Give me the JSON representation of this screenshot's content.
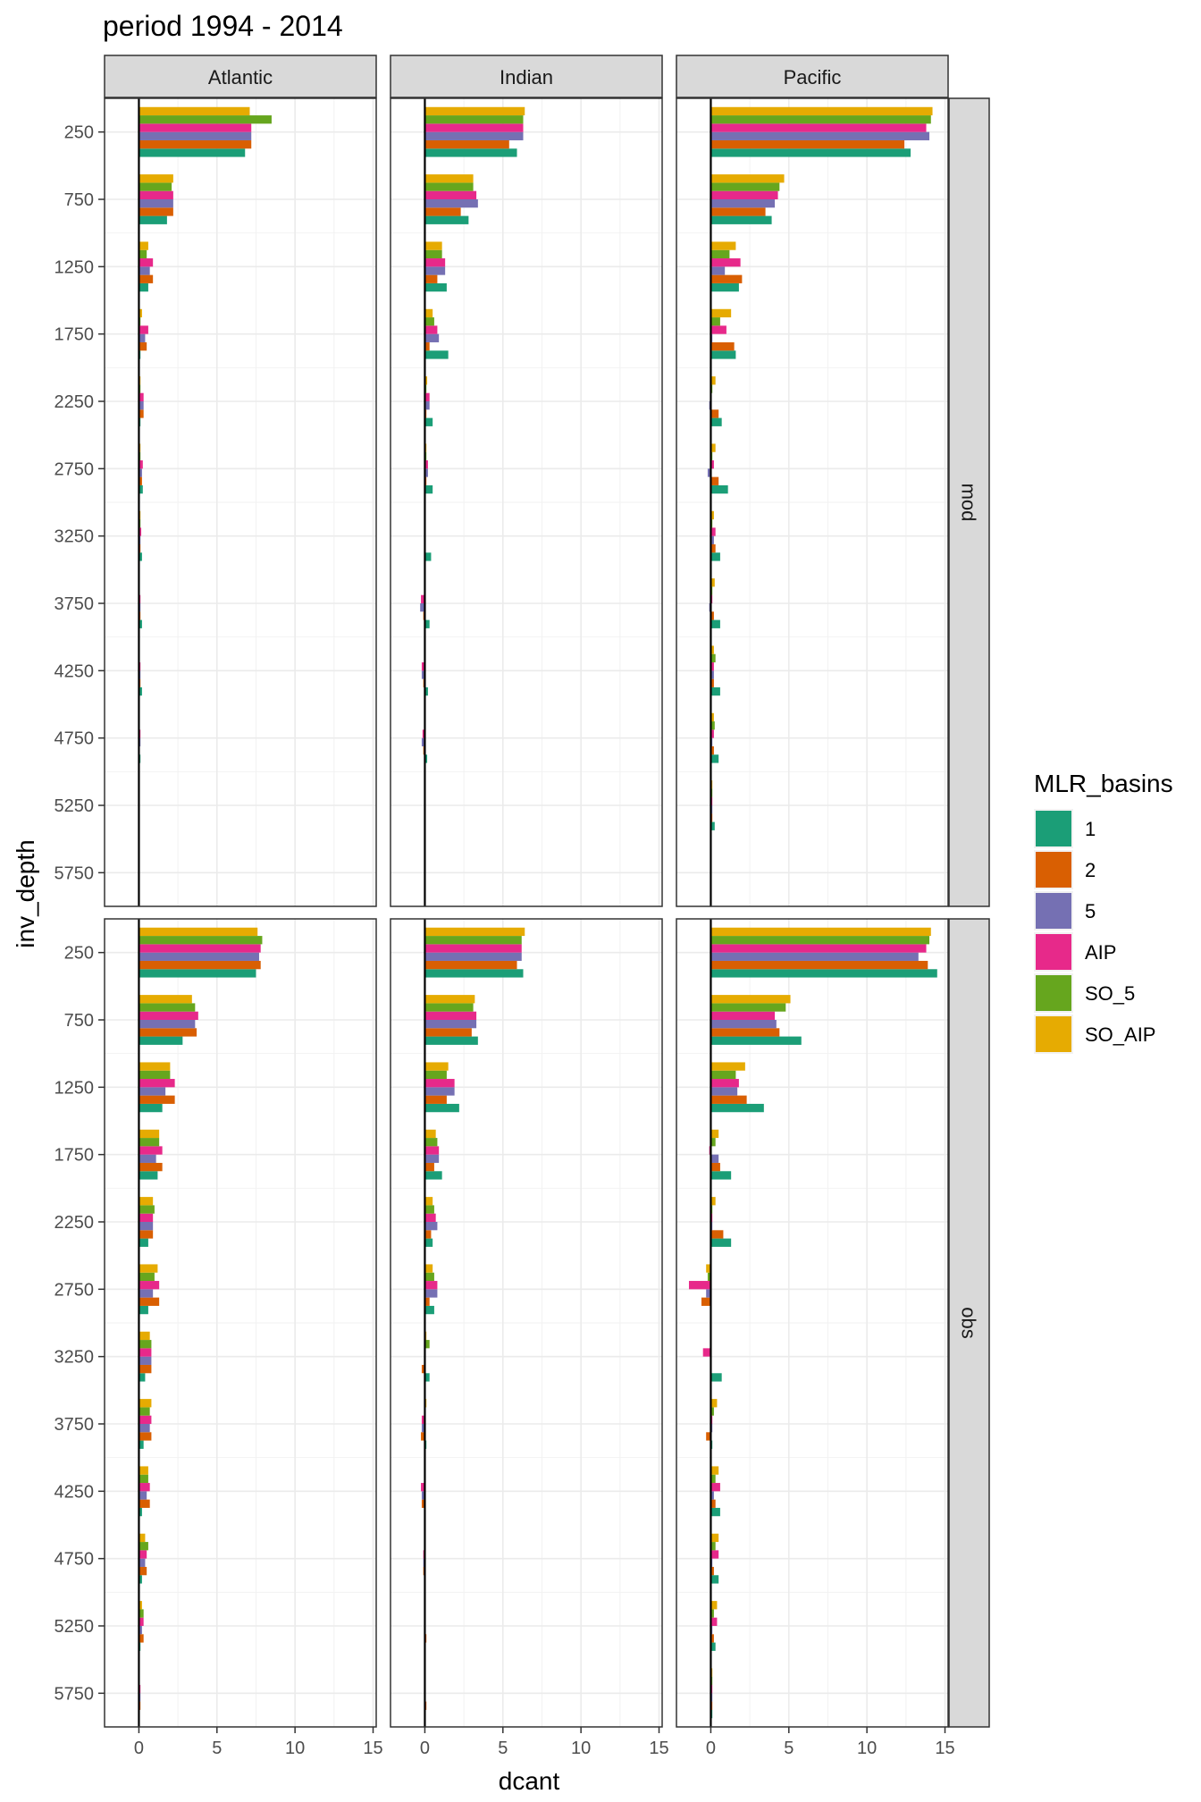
{
  "chart_data": {
    "type": "bar",
    "orientation": "horizontal",
    "title": "period 1994 - 2014",
    "xlabel": "dcant",
    "ylabel": "inv_depth",
    "xlim": [
      -2.2,
      15.2
    ],
    "xticks": [
      0,
      5,
      10,
      15
    ],
    "depths": [
      250,
      750,
      1250,
      1750,
      2250,
      2750,
      3250,
      3750,
      4250,
      4750,
      5250,
      5750
    ],
    "facet_cols": [
      "Atlantic",
      "Indian",
      "Pacific"
    ],
    "facet_rows": [
      "mod",
      "obs"
    ],
    "grid": true,
    "legend": {
      "title": "MLR_basins",
      "position": "right",
      "entries": [
        "1",
        "2",
        "5",
        "AIP",
        "SO_5",
        "SO_AIP"
      ]
    },
    "colors": {
      "1": "#1b9e77",
      "2": "#d95f02",
      "5": "#7570b3",
      "AIP": "#e7298a",
      "SO_5": "#66a61e",
      "SO_AIP": "#e6ab02"
    },
    "panels": [
      {
        "row": "mod",
        "col": "Atlantic",
        "series": [
          {
            "name": "1",
            "values": [
              6.8,
              1.8,
              0.6,
              0.1,
              0.1,
              0.25,
              0.2,
              0.2,
              0.2,
              0.1,
              0.05,
              0.0
            ]
          },
          {
            "name": "2",
            "values": [
              7.2,
              2.2,
              0.9,
              0.5,
              0.3,
              0.2,
              0.1,
              0.1,
              0.1,
              0.05,
              0.0,
              0.0
            ]
          },
          {
            "name": "5",
            "values": [
              7.2,
              2.2,
              0.7,
              0.4,
              0.3,
              0.2,
              0.1,
              0.1,
              0.1,
              0.1,
              0.0,
              0.0
            ]
          },
          {
            "name": "AIP",
            "values": [
              7.2,
              2.2,
              0.9,
              0.6,
              0.3,
              0.25,
              0.15,
              0.1,
              0.1,
              0.1,
              0.0,
              0.0
            ]
          },
          {
            "name": "SO_5",
            "values": [
              8.5,
              2.1,
              0.5,
              0.1,
              0.1,
              0.1,
              0.1,
              0.05,
              0.05,
              0.05,
              0.0,
              0.0
            ]
          },
          {
            "name": "SO_AIP",
            "values": [
              7.1,
              2.2,
              0.6,
              0.2,
              0.1,
              0.1,
              0.1,
              0.05,
              0.05,
              0.05,
              0.0,
              0.0
            ]
          }
        ]
      },
      {
        "row": "mod",
        "col": "Indian",
        "series": [
          {
            "name": "1",
            "values": [
              5.9,
              2.8,
              1.4,
              1.5,
              0.5,
              0.5,
              0.4,
              0.3,
              0.2,
              0.15,
              0.05,
              0.0
            ]
          },
          {
            "name": "2",
            "values": [
              5.4,
              2.3,
              0.8,
              0.3,
              0.1,
              0.1,
              0.05,
              -0.1,
              -0.1,
              -0.1,
              0.0,
              0.0
            ]
          },
          {
            "name": "5",
            "values": [
              6.3,
              3.4,
              1.3,
              0.9,
              0.3,
              0.2,
              0.05,
              -0.3,
              -0.2,
              -0.2,
              0.0,
              0.0
            ]
          },
          {
            "name": "AIP",
            "values": [
              6.3,
              3.3,
              1.3,
              0.8,
              0.3,
              0.2,
              0.05,
              -0.25,
              -0.2,
              -0.15,
              0.0,
              0.0
            ]
          },
          {
            "name": "SO_5",
            "values": [
              6.3,
              3.1,
              1.1,
              0.6,
              0.1,
              0.1,
              0.05,
              0.05,
              0.0,
              0.0,
              0.0,
              0.0
            ]
          },
          {
            "name": "SO_AIP",
            "values": [
              6.4,
              3.1,
              1.1,
              0.5,
              0.15,
              0.1,
              0.05,
              0.05,
              0.0,
              0.0,
              0.0,
              0.0
            ]
          }
        ]
      },
      {
        "row": "mod",
        "col": "Pacific",
        "series": [
          {
            "name": "1",
            "values": [
              12.8,
              3.9,
              1.8,
              1.6,
              0.7,
              1.1,
              0.6,
              0.6,
              0.6,
              0.5,
              0.25,
              0.0
            ]
          },
          {
            "name": "2",
            "values": [
              12.4,
              3.5,
              2.0,
              1.5,
              0.5,
              0.5,
              0.3,
              0.2,
              0.2,
              0.2,
              0.1,
              0.0
            ]
          },
          {
            "name": "5",
            "values": [
              14.0,
              4.1,
              0.9,
              0.1,
              -0.1,
              -0.2,
              0.2,
              -0.1,
              0.2,
              0.1,
              0.1,
              0.0
            ]
          },
          {
            "name": "AIP",
            "values": [
              13.8,
              4.3,
              1.9,
              1.0,
              0.05,
              0.2,
              0.3,
              0.1,
              0.2,
              0.2,
              0.1,
              0.0
            ]
          },
          {
            "name": "SO_5",
            "values": [
              14.1,
              4.4,
              1.2,
              0.6,
              0.1,
              0.1,
              0.1,
              0.1,
              0.3,
              0.25,
              0.1,
              0.0
            ]
          },
          {
            "name": "SO_AIP",
            "values": [
              14.2,
              4.7,
              1.6,
              1.3,
              0.3,
              0.3,
              0.2,
              0.25,
              0.2,
              0.2,
              0.1,
              0.0
            ]
          }
        ]
      },
      {
        "row": "obs",
        "col": "Atlantic",
        "series": [
          {
            "name": "1",
            "values": [
              7.5,
              2.8,
              1.5,
              1.2,
              0.6,
              0.6,
              0.4,
              0.3,
              0.2,
              0.2,
              0.1,
              0.05
            ]
          },
          {
            "name": "2",
            "values": [
              7.8,
              3.7,
              2.3,
              1.5,
              0.9,
              1.3,
              0.8,
              0.8,
              0.7,
              0.5,
              0.3,
              0.1
            ]
          },
          {
            "name": "5",
            "values": [
              7.7,
              3.6,
              1.7,
              1.1,
              0.9,
              0.9,
              0.8,
              0.7,
              0.5,
              0.4,
              0.2,
              0.1
            ]
          },
          {
            "name": "AIP",
            "values": [
              7.8,
              3.8,
              2.3,
              1.5,
              0.9,
              1.3,
              0.8,
              0.8,
              0.7,
              0.5,
              0.3,
              0.1
            ]
          },
          {
            "name": "SO_5",
            "values": [
              7.9,
              3.6,
              2.0,
              1.3,
              1.0,
              1.0,
              0.8,
              0.7,
              0.6,
              0.6,
              0.3,
              0.05
            ]
          },
          {
            "name": "SO_AIP",
            "values": [
              7.6,
              3.4,
              2.0,
              1.3,
              0.9,
              1.2,
              0.7,
              0.8,
              0.6,
              0.4,
              0.2,
              0.05
            ]
          }
        ]
      },
      {
        "row": "obs",
        "col": "Indian",
        "series": [
          {
            "name": "1",
            "values": [
              6.3,
              3.4,
              2.2,
              1.1,
              0.5,
              0.6,
              0.3,
              0.1,
              0.05,
              0.0,
              0.0,
              0.0
            ]
          },
          {
            "name": "2",
            "values": [
              5.9,
              3.0,
              1.4,
              0.6,
              0.4,
              0.3,
              -0.2,
              -0.25,
              -0.2,
              -0.1,
              0.1,
              0.1
            ]
          },
          {
            "name": "5",
            "values": [
              6.2,
              3.3,
              1.9,
              0.9,
              0.8,
              0.8,
              0.05,
              -0.2,
              -0.2,
              -0.1,
              0.0,
              0.0
            ]
          },
          {
            "name": "AIP",
            "values": [
              6.2,
              3.3,
              1.9,
              0.9,
              0.7,
              0.8,
              0.05,
              -0.2,
              -0.25,
              -0.1,
              0.0,
              0.0
            ]
          },
          {
            "name": "SO_5",
            "values": [
              6.2,
              3.1,
              1.4,
              0.8,
              0.6,
              0.6,
              0.3,
              0.05,
              0.05,
              0.0,
              0.0,
              0.0
            ]
          },
          {
            "name": "SO_AIP",
            "values": [
              6.4,
              3.2,
              1.5,
              0.7,
              0.5,
              0.5,
              0.1,
              0.1,
              0.05,
              0.0,
              0.0,
              0.0
            ]
          }
        ]
      },
      {
        "row": "obs",
        "col": "Pacific",
        "series": [
          {
            "name": "1",
            "values": [
              14.5,
              5.8,
              3.4,
              1.3,
              1.3,
              0.05,
              0.7,
              0.1,
              0.6,
              0.5,
              0.3,
              0.1
            ]
          },
          {
            "name": "2",
            "values": [
              13.9,
              4.4,
              2.3,
              0.6,
              0.8,
              -0.6,
              0.05,
              -0.3,
              0.3,
              0.2,
              0.2,
              0.1
            ]
          },
          {
            "name": "5",
            "values": [
              13.3,
              4.2,
              1.7,
              0.5,
              0.1,
              -0.3,
              0.05,
              0.1,
              0.2,
              0.1,
              0.1,
              0.1
            ]
          },
          {
            "name": "AIP",
            "values": [
              13.8,
              4.1,
              1.8,
              -0.1,
              0.1,
              -1.4,
              -0.5,
              0.1,
              0.6,
              0.5,
              0.4,
              0.1
            ]
          },
          {
            "name": "SO_5",
            "values": [
              14.0,
              4.8,
              1.6,
              0.3,
              0.1,
              -0.2,
              0.05,
              0.2,
              0.3,
              0.3,
              0.2,
              0.1
            ]
          },
          {
            "name": "SO_AIP",
            "values": [
              14.1,
              5.1,
              2.2,
              0.5,
              0.3,
              -0.3,
              0.05,
              0.4,
              0.5,
              0.5,
              0.4,
              0.1
            ]
          }
        ]
      }
    ]
  }
}
